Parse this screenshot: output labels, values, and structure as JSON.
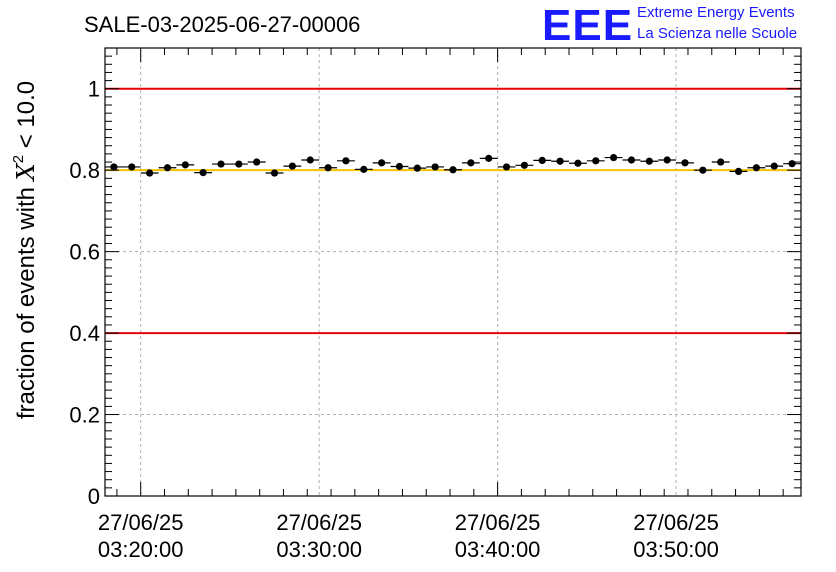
{
  "chart_data": {
    "type": "scatter",
    "title": "SALE-03-2025-06-27-00006",
    "ylabel_prefix": "fraction of events with ",
    "ylabel_chi": "X",
    "ylabel_sup": "2",
    "ylabel_suffix": " < 10.0",
    "logo": {
      "big": "EEE",
      "line1": "Extreme Energy Events",
      "line2": "La Scienza nelle Scuole"
    },
    "ylim": [
      0,
      1.1
    ],
    "xlim_minutes": [
      0,
      58.5
    ],
    "x_ticks": [
      {
        "minute": 3,
        "date": "27/06/25",
        "time": "03:20:00"
      },
      {
        "minute": 18,
        "date": "27/06/25",
        "time": "03:30:00"
      },
      {
        "minute": 33,
        "date": "27/06/25",
        "time": "03:40:00"
      },
      {
        "minute": 48,
        "date": "27/06/25",
        "time": "03:50:00"
      }
    ],
    "y_ticks": [
      {
        "value": 0,
        "label": "0"
      },
      {
        "value": 0.2,
        "label": "0.2"
      },
      {
        "value": 0.4,
        "label": "0.4"
      },
      {
        "value": 0.6,
        "label": "0.6"
      },
      {
        "value": 0.8,
        "label": "0.8"
      },
      {
        "value": 1.0,
        "label": "1"
      }
    ],
    "reference_lines": [
      {
        "value": 1.0,
        "color": "#e8000b"
      },
      {
        "value": 0.4,
        "color": "#e8000b"
      },
      {
        "value": 0.8,
        "color": "#f5c200"
      }
    ],
    "grid": true,
    "marker_color": "#000000",
    "y_error": 0.006,
    "x_half_width": 0.75,
    "points": [
      {
        "x": 0.75,
        "y": 0.808
      },
      {
        "x": 2.25,
        "y": 0.808
      },
      {
        "x": 3.75,
        "y": 0.793
      },
      {
        "x": 5.25,
        "y": 0.806
      },
      {
        "x": 6.75,
        "y": 0.813
      },
      {
        "x": 8.25,
        "y": 0.794
      },
      {
        "x": 9.75,
        "y": 0.815
      },
      {
        "x": 11.25,
        "y": 0.815
      },
      {
        "x": 12.75,
        "y": 0.82
      },
      {
        "x": 14.25,
        "y": 0.793
      },
      {
        "x": 15.75,
        "y": 0.81
      },
      {
        "x": 17.25,
        "y": 0.825
      },
      {
        "x": 18.75,
        "y": 0.806
      },
      {
        "x": 20.25,
        "y": 0.823
      },
      {
        "x": 21.75,
        "y": 0.802
      },
      {
        "x": 23.25,
        "y": 0.818
      },
      {
        "x": 24.75,
        "y": 0.809
      },
      {
        "x": 26.25,
        "y": 0.805
      },
      {
        "x": 27.75,
        "y": 0.808
      },
      {
        "x": 29.25,
        "y": 0.801
      },
      {
        "x": 30.75,
        "y": 0.818
      },
      {
        "x": 32.25,
        "y": 0.829
      },
      {
        "x": 33.75,
        "y": 0.808
      },
      {
        "x": 35.25,
        "y": 0.812
      },
      {
        "x": 36.75,
        "y": 0.824
      },
      {
        "x": 38.25,
        "y": 0.822
      },
      {
        "x": 39.75,
        "y": 0.817
      },
      {
        "x": 41.25,
        "y": 0.823
      },
      {
        "x": 42.75,
        "y": 0.831
      },
      {
        "x": 44.25,
        "y": 0.825
      },
      {
        "x": 45.75,
        "y": 0.822
      },
      {
        "x": 47.25,
        "y": 0.825
      },
      {
        "x": 48.75,
        "y": 0.818
      },
      {
        "x": 50.25,
        "y": 0.8
      },
      {
        "x": 51.75,
        "y": 0.82
      },
      {
        "x": 53.25,
        "y": 0.797
      },
      {
        "x": 54.75,
        "y": 0.806
      },
      {
        "x": 56.25,
        "y": 0.81
      },
      {
        "x": 57.75,
        "y": 0.816
      }
    ]
  }
}
